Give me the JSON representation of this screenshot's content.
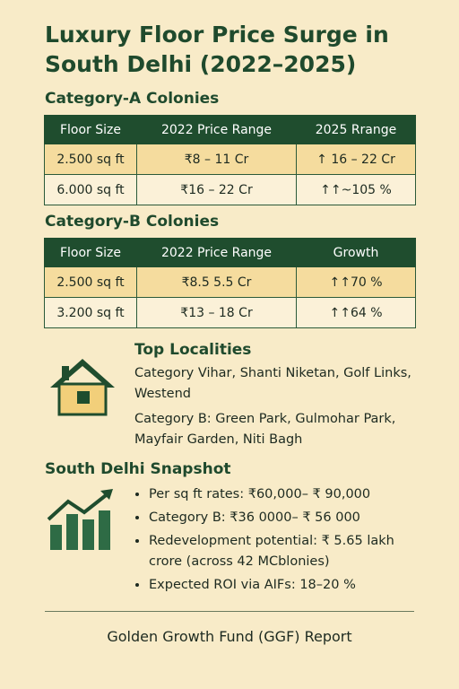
{
  "header": {
    "title": "Luxury Floor Price Surge in South Delhi (2022–2025)"
  },
  "category_a": {
    "heading": "Category-A Colonies",
    "columns": [
      "Floor Size",
      "2022 Price Range",
      "2025 Rrange"
    ],
    "rows": [
      [
        "2.500 sq ft",
        "₹8 – 11 Cr",
        "↑ 16 – 22 Cr"
      ],
      [
        "6.000 sq ft",
        "₹16 – 22 Cr",
        "↑↑~105 %"
      ]
    ]
  },
  "category_b": {
    "heading": "Category-B Colonies",
    "columns": [
      "Floor Size",
      "2022 Price Range",
      "Growth"
    ],
    "rows": [
      [
        "2.500 sq ft",
        "₹8.5 5.5 Cr",
        "↑↑70 %"
      ],
      [
        "3.200 sq ft",
        "₹13 – 18 Cr",
        "↑↑64 %"
      ]
    ]
  },
  "localities": {
    "heading": "Top Localities",
    "items": [
      "Category Vihar, Shanti Niketan, Golf Links, Westend",
      "Category B: Green Park, Gulmohar Park, Mayfair Garden, Niti Bagh"
    ]
  },
  "snapshot": {
    "heading": "South Delhi Snapshot",
    "items": [
      "Per sq ft rates: ₹60,000– ₹ 90,000",
      "Category B: ₹36 0000– ₹ 56 000",
      "Redevelopment potential: ₹ 5.65 lakh crore (across 42 MCblonies)",
      "Expected ROI via AIFs: 18–20 %"
    ]
  },
  "footer": {
    "text": "Golden Growth Fund (GGF) Report"
  }
}
